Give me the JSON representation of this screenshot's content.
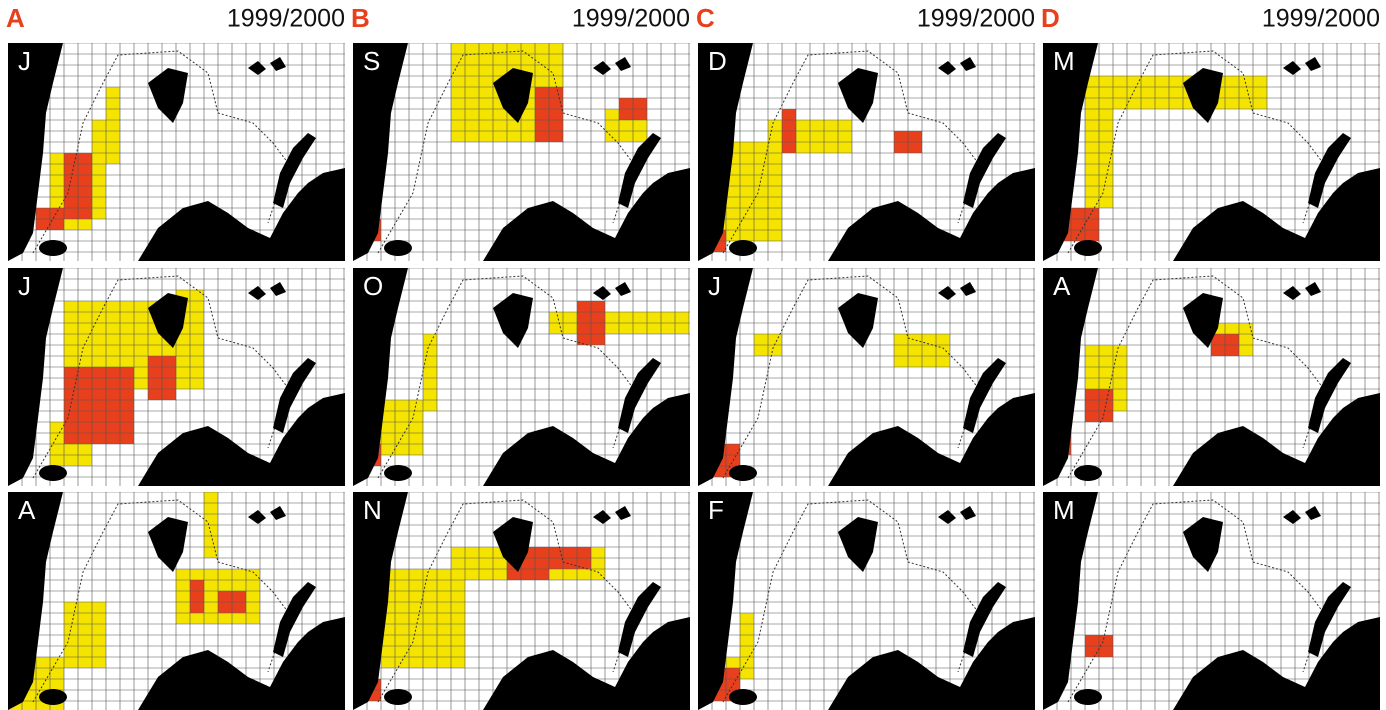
{
  "panels": [
    {
      "label": "A",
      "period": "1999/2000",
      "months": [
        "J",
        "J",
        "A"
      ]
    },
    {
      "label": "B",
      "period": "1999/2000",
      "months": [
        "S",
        "O",
        "N"
      ]
    },
    {
      "label": "C",
      "period": "1999/2000",
      "months": [
        "D",
        "J",
        "F"
      ]
    },
    {
      "label": "D",
      "period": "1999/2000",
      "months": [
        "M",
        "A",
        "M"
      ]
    }
  ]
}
